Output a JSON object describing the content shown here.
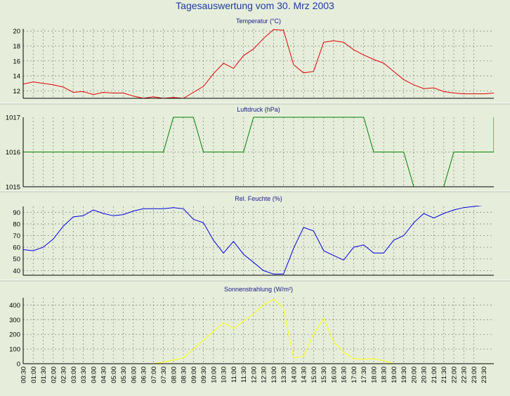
{
  "title": "Tagesauswertung vom 30. Mrz 2003",
  "x_labels": [
    "00:30",
    "01:00",
    "01:30",
    "02:00",
    "02:30",
    "03:00",
    "03:30",
    "04:00",
    "04:30",
    "05:00",
    "05:30",
    "06:00",
    "06:30",
    "07:00",
    "07:30",
    "08:00",
    "08:30",
    "09:00",
    "09:30",
    "10:00",
    "10:30",
    "11:00",
    "11:30",
    "12:00",
    "12:30",
    "13:00",
    "13:30",
    "14:00",
    "14:30",
    "15:00",
    "15:30",
    "16:00",
    "16:30",
    "17:00",
    "17:30",
    "18:00",
    "18:30",
    "19:00",
    "19:30",
    "20:00",
    "20:30",
    "21:00",
    "21:30",
    "22:00",
    "22:30",
    "23:00",
    "23:30"
  ],
  "chart_data": [
    {
      "type": "line",
      "title": "Temperatur (°C)",
      "ylim": [
        11,
        20.3
      ],
      "yticks": [
        12,
        14,
        16,
        18,
        20
      ],
      "color": "#e00000",
      "x": [
        0,
        0.5,
        1,
        1.5,
        2,
        2.5,
        3,
        3.5,
        4,
        4.5,
        5,
        5.5,
        6,
        6.5,
        7,
        7.5,
        8,
        8.5,
        9,
        9.5,
        10,
        10.5,
        11,
        11.5,
        12,
        12.5,
        13,
        13.5,
        14,
        14.5,
        15,
        15.5,
        16,
        16.5,
        17,
        17.5,
        18,
        18.5,
        19,
        19.5,
        20,
        20.5,
        21,
        21.5,
        22,
        22.5,
        23,
        23.5
      ],
      "values": [
        12.9,
        13.2,
        13.0,
        12.8,
        12.5,
        11.8,
        11.9,
        11.5,
        11.8,
        11.7,
        11.7,
        11.3,
        11.0,
        11.2,
        11.0,
        11.1,
        11.0,
        11.8,
        12.6,
        14.3,
        15.7,
        15.0,
        16.7,
        17.6,
        19.0,
        20.2,
        20.1,
        15.5,
        14.4,
        14.6,
        18.5,
        18.7,
        18.5,
        17.5,
        16.8,
        16.2,
        15.7,
        14.6,
        13.5,
        12.8,
        12.3,
        12.4,
        11.9,
        11.7,
        11.6,
        11.6,
        11.6,
        11.7
      ]
    },
    {
      "type": "line",
      "title": "Luftdruck (hPa)",
      "ylim": [
        1015,
        1017
      ],
      "yticks": [
        1015,
        1016,
        1017
      ],
      "color": "#008000",
      "x": [
        0,
        7,
        7.5,
        8.5,
        9,
        11,
        11.5,
        17,
        17.5,
        19,
        19.5,
        21,
        21.5,
        23.5,
        24
      ],
      "values": [
        1016,
        1016,
        1017,
        1017,
        1016,
        1016,
        1017,
        1017,
        1016,
        1016,
        1015,
        1015,
        1016,
        1016,
        1017
      ]
    },
    {
      "type": "line",
      "title": "Rel. Feuchte (%)",
      "ylim": [
        36,
        95
      ],
      "yticks": [
        40,
        50,
        60,
        70,
        80,
        90
      ],
      "color": "#0000e0",
      "x": [
        0,
        0.5,
        1,
        1.5,
        2,
        2.5,
        3,
        3.5,
        4,
        4.5,
        5,
        5.5,
        6,
        6.5,
        7,
        7.5,
        8,
        8.5,
        9,
        9.5,
        10,
        10.5,
        11,
        11.5,
        12,
        12.5,
        13,
        13.5,
        14,
        14.5,
        15,
        15.5,
        16,
        16.5,
        17,
        17.5,
        18,
        18.5,
        19,
        19.5,
        20,
        20.5,
        21,
        21.5,
        22,
        22.5,
        23,
        23.5
      ],
      "values": [
        58,
        57,
        60,
        67,
        78,
        86,
        87,
        92,
        89,
        87,
        88,
        91,
        93,
        93,
        93,
        94,
        93,
        84,
        81,
        66,
        55,
        65,
        54,
        47,
        40,
        37,
        37,
        59,
        77,
        74,
        57,
        53,
        49,
        60,
        62,
        55,
        55,
        66,
        70,
        81,
        89,
        85,
        89,
        92,
        94,
        95,
        96,
        96
      ]
    },
    {
      "type": "line",
      "title": "Sonnenstrahlung (W/m²)",
      "ylim": [
        0,
        450
      ],
      "yticks": [
        0,
        100,
        200,
        300,
        400
      ],
      "color": "#ffff00",
      "x": [
        0,
        6,
        6.5,
        7,
        7.5,
        8,
        8.5,
        9,
        9.5,
        10,
        10.5,
        11,
        11.5,
        12,
        12.5,
        13,
        13.5,
        14,
        14.5,
        15,
        15.5,
        16,
        16.5,
        17,
        17.5,
        18,
        18.5,
        19,
        24
      ],
      "values": [
        0,
        0,
        0,
        10,
        25,
        40,
        100,
        160,
        220,
        280,
        240,
        290,
        340,
        400,
        440,
        380,
        40,
        50,
        200,
        310,
        150,
        80,
        35,
        30,
        35,
        20,
        0,
        0,
        0
      ]
    }
  ]
}
